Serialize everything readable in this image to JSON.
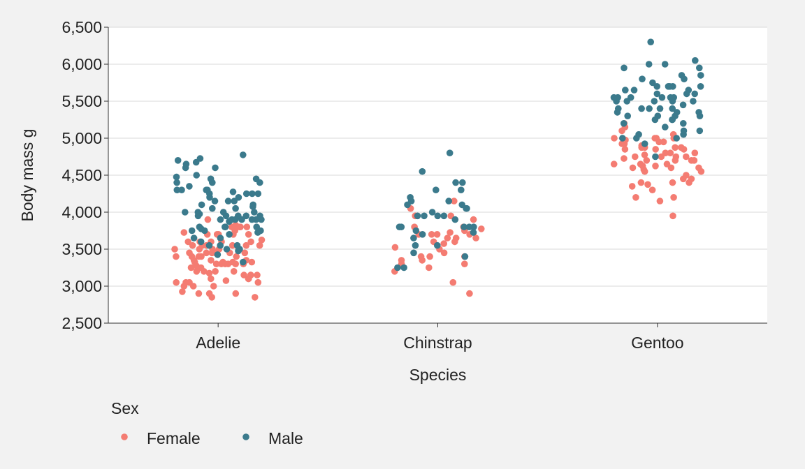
{
  "chart_data": {
    "type": "scatter",
    "title": "",
    "xlabel": "Species",
    "ylabel": "Body mass g",
    "categories": [
      "Adelie",
      "Chinstrap",
      "Gentoo"
    ],
    "ylim": [
      2500,
      6500
    ],
    "yticks": [
      2500,
      3000,
      3500,
      4000,
      4500,
      5000,
      5500,
      6000,
      6500
    ],
    "ytick_labels": [
      "2,500",
      "3,000",
      "3,500",
      "4,000",
      "4,500",
      "5,000",
      "5,500",
      "6,000",
      "6,500"
    ],
    "grid": "horizontal",
    "legend": {
      "title": "Sex",
      "position": "bottom-left"
    },
    "jitter_width": 0.4,
    "series": [
      {
        "name": "Female",
        "color": "#f47c72",
        "values": {
          "Adelie": [
            3800,
            3250,
            3450,
            3625,
            3200,
            3700,
            3450,
            3325,
            3400,
            3800,
            3800,
            3200,
            3150,
            3250,
            3300,
            3325,
            3550,
            3300,
            3150,
            3100,
            3000,
            3450,
            3500,
            3450,
            2900,
            3550,
            2850,
            3150,
            3600,
            2850,
            3350,
            3050,
            3600,
            3550,
            3700,
            3700,
            3550,
            3200,
            3800,
            3350,
            3500,
            3600,
            3550,
            3400,
            3300,
            3700,
            2900,
            3725,
            3075,
            2925,
            3750,
            3175,
            3825,
            3200,
            3900,
            2900,
            3350,
            3150,
            3450,
            3050,
            3275,
            3050,
            3325,
            3500,
            3500,
            3400,
            3100,
            3000,
            3450,
            3300,
            3600,
            3100,
            3300,
            3300,
            3400,
            3325,
            3000,
            3500,
            3550,
            3600,
            3700,
            3050,
            3400
          ],
          "Chinstrap": [
            3500,
            3900,
            3650,
            3525,
            3725,
            3950,
            3250,
            3750,
            4150,
            3700,
            3800,
            3775,
            3700,
            4050,
            3575,
            3050,
            3700,
            3450,
            3600,
            3350,
            3650,
            3300,
            3950,
            3600,
            3400,
            3400,
            2900,
            3800,
            3300,
            3400,
            3700,
            3200,
            3350,
            3650
          ],
          "Gentoo": [
            4500,
            4450,
            4550,
            4800,
            4400,
            4650,
            4650,
            4200,
            4150,
            4800,
            5000,
            4400,
            5000,
            4600,
            4700,
            5050,
            5150,
            4950,
            4350,
            3950,
            4300,
            4900,
            4200,
            4550,
            4700,
            4750,
            4625,
            4725,
            4750,
            4600,
            4875,
            4950,
            4750,
            4850,
            4875,
            4625,
            4850,
            4975,
            4700,
            4575,
            5000,
            4650,
            4375,
            4925,
            4850,
            5200,
            4925,
            4875,
            4750,
            4700,
            4775,
            4600,
            5000,
            4800,
            4400,
            5100,
            4450,
            4875
          ]
        }
      },
      {
        "name": "Male",
        "color": "#3b7a8c",
        "values": {
          "Adelie": [
            3750,
            3650,
            4675,
            3800,
            4400,
            4500,
            4200,
            3600,
            3950,
            3800,
            3550,
            3950,
            3900,
            3900,
            4150,
            3950,
            4650,
            3900,
            4400,
            4600,
            3425,
            4150,
            4300,
            4050,
            3700,
            3800,
            3750,
            4400,
            4050,
            3950,
            4100,
            4450,
            3900,
            4150,
            4250,
            3900,
            4000,
            4700,
            4200,
            3550,
            3800,
            3950,
            4300,
            4450,
            4300,
            4350,
            4100,
            4725,
            4250,
            3550,
            3900,
            4775,
            4600,
            4275,
            4075,
            3775,
            3325,
            3500,
            3875,
            4000,
            4300,
            4000,
            3500,
            4475,
            3900,
            3975,
            4250,
            3475,
            3725,
            3650,
            4250,
            3750,
            4000
          ],
          "Chinstrap": [
            3650,
            3800,
            3800,
            3950,
            4550,
            3800,
            4100,
            3900,
            4400,
            4150,
            4050,
            4050,
            4300,
            3450,
            4100,
            3800,
            3550,
            3950,
            4300,
            3550,
            3800,
            3700,
            4150,
            3725,
            4200,
            3250,
            3750,
            4400,
            3950,
            4800,
            3950,
            3250,
            3400,
            4000
          ],
          "Gentoo": [
            5700,
            5700,
            5400,
            5200,
            5150,
            5550,
            5850,
            6300,
            5350,
            5700,
            5050,
            5100,
            5650,
            5550,
            5250,
            6050,
            5400,
            5250,
            5350,
            5700,
            4750,
            5550,
            5400,
            5300,
            5300,
            5000,
            5050,
            5000,
            5550,
            5300,
            5650,
            5700,
            5800,
            5550,
            5000,
            5100,
            5800,
            6000,
            5950,
            5450,
            5350,
            5600,
            5300,
            5550,
            5400,
            5650,
            5200,
            4925,
            5250,
            5600,
            5500,
            5500,
            5500,
            5500,
            5950,
            5500,
            5850,
            6000,
            5750,
            5400,
            5600
          ]
        }
      }
    ]
  }
}
